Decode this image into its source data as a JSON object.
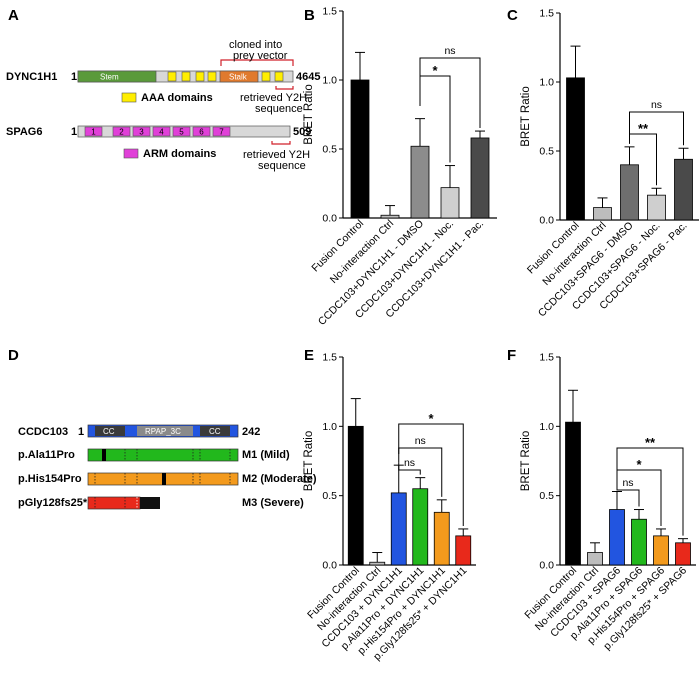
{
  "panels": [
    {
      "id": "A",
      "label": "A"
    },
    {
      "id": "B",
      "label": "B"
    },
    {
      "id": "C",
      "label": "C"
    },
    {
      "id": "D",
      "label": "D"
    },
    {
      "id": "E",
      "label": "E"
    },
    {
      "id": "F",
      "label": "F"
    }
  ],
  "panel_a": {
    "dync": {
      "name": "DYNC1H1",
      "start": "1",
      "end": "4645",
      "stem": "Stalk_stub",
      "stem_label": "Stem",
      "stalk_label": "Stalk"
    },
    "annot_cloned": "cloned into",
    "annot_prey": "prey vector",
    "aaa_legend": "AAA domains",
    "retrieved1": "retrieved Y2H",
    "sequence1": "sequence",
    "spag": {
      "name": "SPAG6",
      "start": "1",
      "end": "509",
      "repeats": [
        "1",
        "2",
        "3",
        "4",
        "5",
        "6",
        "7"
      ]
    },
    "arm_legend": "ARM domains",
    "retrieved2": "retrieved Y2H",
    "sequence2": "sequence",
    "colors": {
      "stem": "#5a9a3a",
      "stalk": "#e07a2e",
      "aaa": "#ffee00",
      "arm": "#e040d8",
      "bar": "#d8d8d8"
    }
  },
  "panel_d": {
    "ccdc": {
      "name": "CCDC103",
      "start": "1",
      "end": "242",
      "cc1": "CC",
      "rpap": "RPAP_3C",
      "cc2": "CC"
    },
    "variants": [
      {
        "name": "p.Ala11Pro",
        "label": "M1 (Mild)",
        "color": "#22b81c"
      },
      {
        "name": "p.His154Pro",
        "label": "M2 (Moderate)",
        "color": "#f39a1d"
      },
      {
        "name": "pGly128fs25*",
        "label": "M3 (Severe)",
        "color": "#e8291b"
      }
    ],
    "colors": {
      "ccdc_blue": "#2255e0",
      "cc_dark": "#3a3a3a",
      "rpap": "#8a8a8a"
    }
  },
  "chart_data": [
    {
      "panel": "B",
      "type": "bar",
      "ylabel": "BRET Ratio",
      "ylim": [
        0,
        1.5
      ],
      "yticks": [
        "0.0",
        "0.5",
        "1.0",
        "1.5"
      ],
      "categories": [
        "Fusion Control",
        "No-interaction Ctrl",
        "CCDC103+DYNC1H1 - DMSO",
        "CCDC103+DYNC1H1 - Noc.",
        "CCDC103+DYNC1H1 - Pac."
      ],
      "values": [
        1.0,
        0.02,
        0.52,
        0.22,
        0.58
      ],
      "errors": [
        0.2,
        0.07,
        0.2,
        0.16,
        0.05
      ],
      "colors": [
        "#000000",
        "#bdbdbd",
        "#8c8c8c",
        "#cfcfcf",
        "#4a4a4a"
      ],
      "significance": [
        {
          "from": 2,
          "to": 3,
          "label": "*"
        },
        {
          "from": 2,
          "to": 4,
          "label": "ns"
        }
      ]
    },
    {
      "panel": "C",
      "type": "bar",
      "ylabel": "BRET Ratio",
      "ylim": [
        0,
        1.5
      ],
      "yticks": [
        "0.0",
        "0.5",
        "1.0",
        "1.5"
      ],
      "categories": [
        "Fusion Control",
        "No-interaction Ctrl",
        "CCDC103+SPAG6 - DMSO",
        "CCDC103+SPAG6 - Noc.",
        "CCDC103+SPAG6 - Pac."
      ],
      "values": [
        1.03,
        0.09,
        0.4,
        0.18,
        0.44
      ],
      "errors": [
        0.23,
        0.07,
        0.13,
        0.05,
        0.08
      ],
      "colors": [
        "#000000",
        "#bdbdbd",
        "#6e6e6e",
        "#cfcfcf",
        "#4a4a4a"
      ],
      "significance": [
        {
          "from": 2,
          "to": 3,
          "label": "**"
        },
        {
          "from": 2,
          "to": 4,
          "label": "ns"
        }
      ]
    },
    {
      "panel": "E",
      "type": "bar",
      "ylabel": "BRET Ratio",
      "ylim": [
        0,
        1.5
      ],
      "yticks": [
        "0.0",
        "0.5",
        "1.0",
        "1.5"
      ],
      "categories": [
        "Fusion Control",
        "No-interaction Ctrl",
        "CCDC103 + DYNC1H1",
        "p.Ala11Pro + DYNC1H1",
        "p.His154Pro + DYNC1H1",
        "p.Gly128fs25* + DYNC1H1"
      ],
      "values": [
        1.0,
        0.02,
        0.52,
        0.55,
        0.38,
        0.21
      ],
      "errors": [
        0.2,
        0.07,
        0.2,
        0.08,
        0.09,
        0.05
      ],
      "colors": [
        "#000000",
        "#bdbdbd",
        "#2255e0",
        "#22b81c",
        "#f39a1d",
        "#e8291b"
      ],
      "significance": [
        {
          "from": 2,
          "to": 3,
          "label": "ns"
        },
        {
          "from": 2,
          "to": 4,
          "label": "ns"
        },
        {
          "from": 2,
          "to": 5,
          "label": "*"
        }
      ]
    },
    {
      "panel": "F",
      "type": "bar",
      "ylabel": "BRET Ratio",
      "ylim": [
        0,
        1.5
      ],
      "yticks": [
        "0.0",
        "0.5",
        "1.0",
        "1.5"
      ],
      "categories": [
        "Fusion Control",
        "No-interaction Ctrl",
        "CCDC103 + SPAG6",
        "p.Ala11Pro + SPAG6",
        "p.His154Pro + SPAG6",
        "p.Gly128fs25* + SPAG6"
      ],
      "values": [
        1.03,
        0.09,
        0.4,
        0.33,
        0.21,
        0.16
      ],
      "errors": [
        0.23,
        0.07,
        0.13,
        0.07,
        0.05,
        0.03
      ],
      "colors": [
        "#000000",
        "#bdbdbd",
        "#2255e0",
        "#22b81c",
        "#f39a1d",
        "#e8291b"
      ],
      "significance": [
        {
          "from": 2,
          "to": 3,
          "label": "ns"
        },
        {
          "from": 2,
          "to": 4,
          "label": "*"
        },
        {
          "from": 2,
          "to": 5,
          "label": "**"
        }
      ]
    }
  ]
}
